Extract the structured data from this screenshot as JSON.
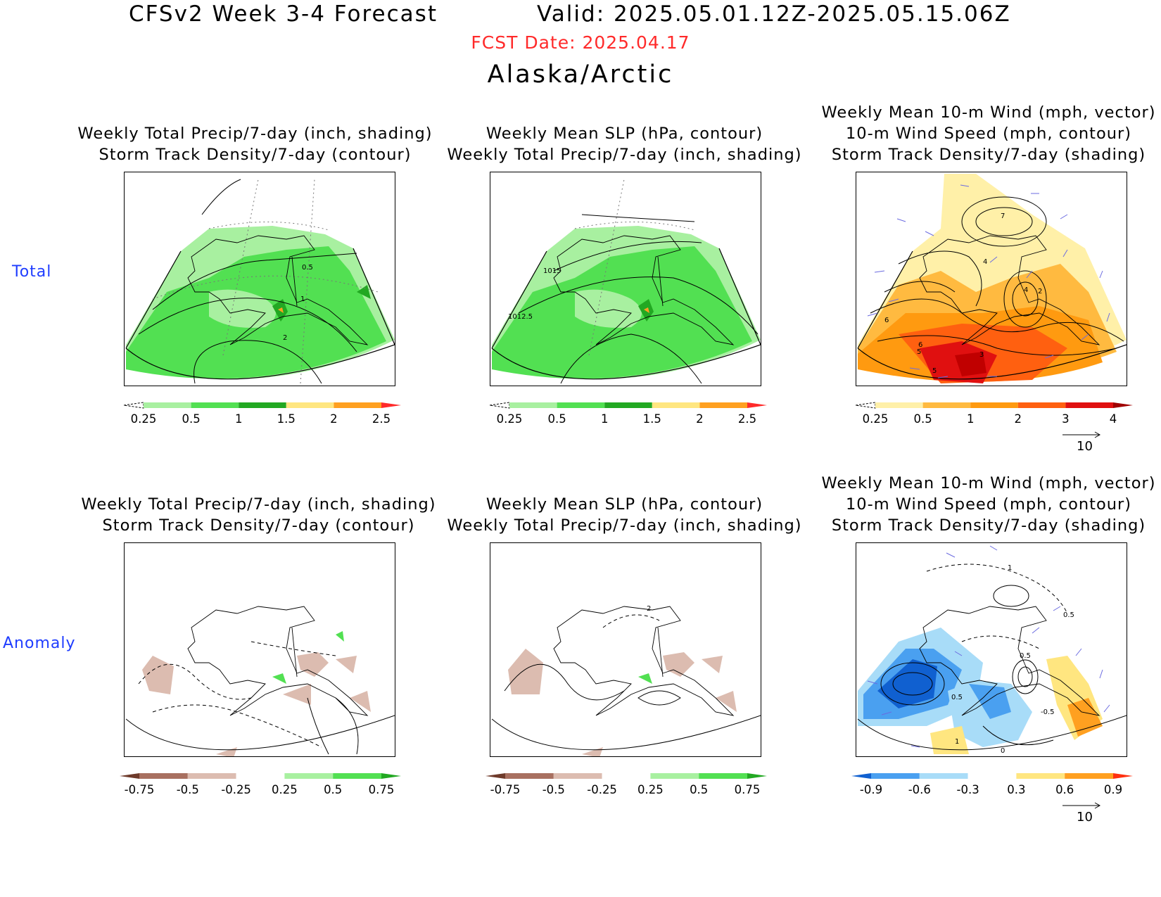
{
  "header": {
    "title_left": "CFSv2 Week 3-4 Forecast",
    "title_right": "Valid: 2025.05.01.12Z-2025.05.15.06Z",
    "fcst_date": "FCST Date: 2025.04.17",
    "region": "Alaska/Arctic"
  },
  "rows": [
    {
      "label": "Total"
    },
    {
      "label": "Anomaly"
    }
  ],
  "panels": {
    "precip": {
      "title_line1": "Weekly Total Precip/7-day (inch, shading)",
      "title_line2": "Storm Track Density/7-day (contour)"
    },
    "slp": {
      "title_line1": "Weekly Mean SLP (hPa, contour)",
      "title_line2": "Weekly Total Precip/7-day (inch, shading)"
    },
    "wind": {
      "title_line1": "Weekly Mean 10-m Wind (mph, vector)",
      "title_line2": "10-m Wind Speed (mph, contour)",
      "title_line3": "Storm Track Density/7-day (shading)"
    }
  },
  "contour_labels": {
    "total_precip": [
      "0.5",
      "1",
      "2"
    ],
    "total_slp": [
      "1015",
      "1012.5"
    ],
    "total_wind": [
      "7",
      "4",
      "4",
      "2",
      "6",
      "6",
      "5",
      "3",
      "5"
    ],
    "anom_slp": [
      "2"
    ],
    "anom_wind": [
      "1",
      "0.5",
      "0.5",
      "0.5",
      "-0.5",
      "1",
      "0"
    ]
  },
  "colorbars": {
    "precip_total": {
      "ticks": [
        "0.25",
        "0.5",
        "1",
        "1.5",
        "2",
        "2.5"
      ],
      "colors": [
        "#ffffff",
        "#a8f0a0",
        "#52e052",
        "#22a822",
        "#ffe680",
        "#ffa020",
        "#ff2a2a"
      ]
    },
    "storm_total": {
      "ticks": [
        "0.25",
        "0.5",
        "1",
        "2",
        "3",
        "4"
      ],
      "colors": [
        "#ffffff",
        "#fff0a8",
        "#ffba40",
        "#ff9a10",
        "#ff6010",
        "#e01010",
        "#a00000"
      ]
    },
    "precip_anom": {
      "ticks": [
        "-0.75",
        "-0.5",
        "-0.25",
        "0.25",
        "0.5",
        "0.75"
      ],
      "colors": [
        "#6e3a2a",
        "#a87060",
        "#dcbcb0",
        "#ffffff",
        "#a8f0a0",
        "#52e052",
        "#22a822"
      ]
    },
    "storm_anom": {
      "ticks": [
        "-0.9",
        "-0.6",
        "-0.3",
        "0.3",
        "0.6",
        "0.9"
      ],
      "colors": [
        "#1060d0",
        "#4aa0f0",
        "#a8dcf8",
        "#ffffff",
        "#ffe680",
        "#ffa020",
        "#ff3010"
      ]
    }
  },
  "vector_ref": {
    "label": "10"
  }
}
